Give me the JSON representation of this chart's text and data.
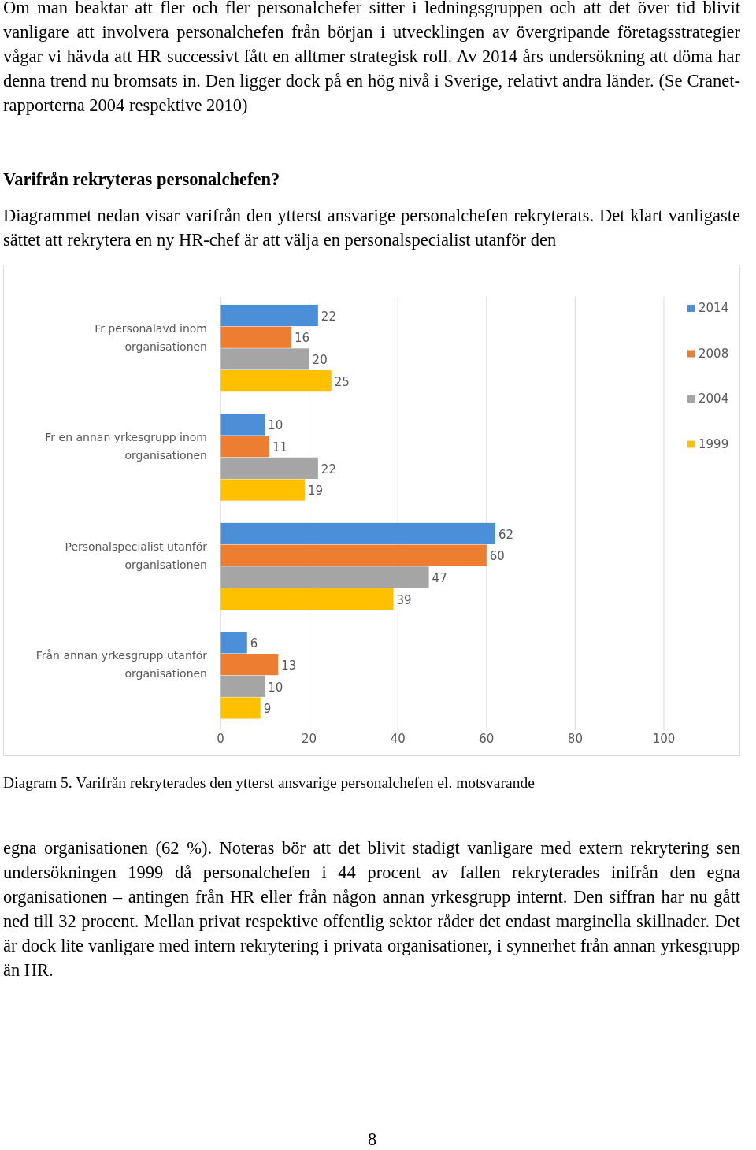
{
  "chart_data": {
    "type": "bar",
    "orientation": "horizontal",
    "title": "Diagram 5. Varifrån rekryterades den ytterst ansvarige personalchefen el. motsvarande",
    "categories": [
      "Fr personalavd inom organisationen",
      "Fr en annan yrkesgrupp inom organisationen",
      "Personalspecialist utanför organisationen",
      "Från annan yrkesgrupp utanför organisationen"
    ],
    "series": [
      {
        "name": "2014",
        "color": "#4a8fd8",
        "values": [
          22,
          10,
          62,
          6
        ]
      },
      {
        "name": "2008",
        "color": "#ed7d31",
        "values": [
          16,
          11,
          60,
          13
        ]
      },
      {
        "name": "2004",
        "color": "#a5a5a5",
        "values": [
          20,
          22,
          47,
          10
        ]
      },
      {
        "name": "1999",
        "color": "#ffc000",
        "values": [
          25,
          19,
          39,
          9
        ]
      }
    ],
    "xlim": [
      0,
      100
    ],
    "xticks": [
      0,
      20,
      40,
      60,
      80,
      100
    ],
    "grid": "x",
    "legend": "top right",
    "data_labels": true,
    "annotations": [
      "Om man beaktar att fler och fler personalchefer sitter i ledningsgruppen och att det över tid blivit vanligare att involvera personalchefen från början i utvecklingen av övergripande företagsstrategier vågar vi hävda att HR successivt fått en alltmer strategisk roll. Av 2014 års undersökning att döma har denna trend nu bromsats in. Den ligger dock på en hög nivå i Sverige, relativt andra länder. (Se Cranet-rapporterna 2004 respektive 2010)",
      "Varifrån rekryteras personalchefen?",
      "Diagrammet nedan visar varifrån den ytterst ansvarige personalchefen rekryterats. Det klart vanligaste sättet att rekrytera en ny HR-chef är att välja en personalspecialist utanför den",
      "egna organisationen (62 %). Noteras bör att det blivit stadigt vanligare med extern rekrytering sen undersökningen 1999 då personalchefen i 44 procent av fallen rekryterades inifrån den egna organisationen – antingen från HR eller från någon annan yrkesgrupp internt. Den siffran har nu gått ned till 32 procent. Mellan privat respektive offentlig sektor råder det endast marginella skillnader. Det är dock lite vanligare med intern rekrytering i privata organisationer, i synnerhet från annan yrkesgrupp än HR.",
      "8"
    ]
  }
}
